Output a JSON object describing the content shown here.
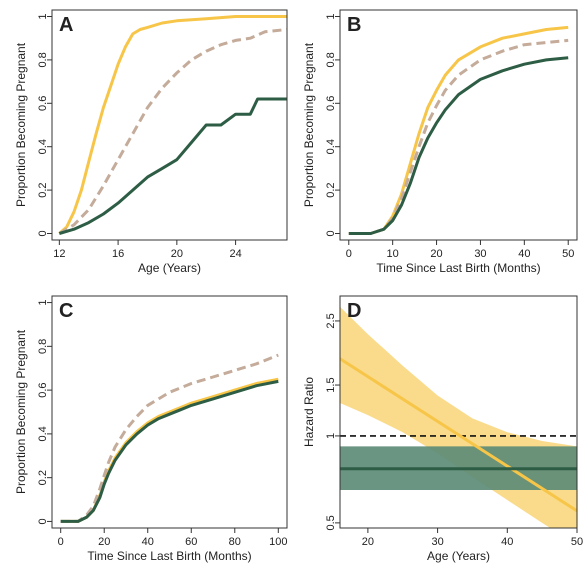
{
  "colors": {
    "yellow": "#f7c548",
    "tan": "#c4ab9a",
    "green": "#2e5d45",
    "band_yellow": "#f8d77e",
    "band_green": "#5a8a76",
    "frame": "#333333"
  },
  "chart_data": [
    {
      "panel": "A",
      "type": "line",
      "xlabel": "Age (Years)",
      "ylabel": "Proportion Becoming Pregnant",
      "xlim": [
        11.5,
        27.5
      ],
      "ylim": [
        -0.03,
        1.03
      ],
      "xticks": [
        12,
        16,
        20,
        24
      ],
      "yticks": [
        0.0,
        0.2,
        0.4,
        0.6,
        0.8,
        1.0
      ],
      "series": [
        {
          "color": "yellow",
          "dash": false,
          "x": [
            12,
            12.5,
            13,
            13.5,
            14,
            14.5,
            15,
            15.5,
            16,
            16.5,
            17,
            17.5,
            18,
            19,
            20,
            22,
            24,
            27.5
          ],
          "y": [
            0.0,
            0.03,
            0.1,
            0.2,
            0.33,
            0.46,
            0.58,
            0.68,
            0.78,
            0.86,
            0.92,
            0.94,
            0.95,
            0.97,
            0.98,
            0.99,
            1.0,
            1.0
          ]
        },
        {
          "color": "tan",
          "dash": true,
          "x": [
            12,
            13,
            14,
            15,
            16,
            17,
            18,
            19,
            20,
            21,
            22,
            23,
            24,
            25,
            26,
            27.5
          ],
          "y": [
            0.0,
            0.04,
            0.11,
            0.22,
            0.34,
            0.46,
            0.58,
            0.67,
            0.74,
            0.8,
            0.84,
            0.87,
            0.89,
            0.9,
            0.93,
            0.94
          ]
        },
        {
          "color": "green",
          "dash": false,
          "x": [
            12,
            13,
            14,
            15,
            16,
            17,
            18,
            19,
            20,
            21,
            22,
            23,
            24,
            25,
            25.5,
            27.5
          ],
          "y": [
            0.0,
            0.02,
            0.05,
            0.09,
            0.14,
            0.2,
            0.26,
            0.3,
            0.34,
            0.42,
            0.5,
            0.5,
            0.55,
            0.55,
            0.62,
            0.62
          ]
        }
      ]
    },
    {
      "panel": "B",
      "type": "line",
      "xlabel": "Time Since Last Birth (Months)",
      "ylabel": "Proportion Becoming Pregnant",
      "xlim": [
        -2,
        52
      ],
      "ylim": [
        -0.03,
        1.03
      ],
      "xticks": [
        0,
        10,
        20,
        30,
        40,
        50
      ],
      "yticks": [
        0.0,
        0.2,
        0.4,
        0.6,
        0.8,
        1.0
      ],
      "series": [
        {
          "color": "yellow",
          "dash": false,
          "x": [
            0,
            5,
            8,
            10,
            12,
            14,
            16,
            18,
            20,
            22,
            25,
            30,
            35,
            40,
            45,
            50
          ],
          "y": [
            0.0,
            0.0,
            0.02,
            0.08,
            0.18,
            0.32,
            0.46,
            0.58,
            0.66,
            0.73,
            0.8,
            0.86,
            0.9,
            0.92,
            0.94,
            0.95
          ]
        },
        {
          "color": "tan",
          "dash": true,
          "x": [
            0,
            5,
            8,
            10,
            12,
            14,
            16,
            18,
            20,
            22,
            25,
            30,
            35,
            40,
            45,
            50
          ],
          "y": [
            0.0,
            0.0,
            0.02,
            0.07,
            0.16,
            0.28,
            0.4,
            0.51,
            0.59,
            0.66,
            0.73,
            0.8,
            0.84,
            0.87,
            0.88,
            0.89
          ]
        },
        {
          "color": "green",
          "dash": false,
          "x": [
            0,
            5,
            8,
            10,
            12,
            14,
            16,
            18,
            20,
            22,
            25,
            30,
            35,
            40,
            45,
            50
          ],
          "y": [
            0.0,
            0.0,
            0.02,
            0.06,
            0.13,
            0.23,
            0.35,
            0.44,
            0.51,
            0.57,
            0.64,
            0.71,
            0.75,
            0.78,
            0.8,
            0.81
          ]
        }
      ]
    },
    {
      "panel": "C",
      "type": "line",
      "xlabel": "Time Since Last Birth (Months)",
      "ylabel": "Proportion Becoming Pregnant",
      "xlim": [
        -4,
        104
      ],
      "ylim": [
        -0.03,
        1.03
      ],
      "xticks": [
        0,
        20,
        40,
        60,
        80,
        100
      ],
      "yticks": [
        0.0,
        0.2,
        0.4,
        0.6,
        0.8,
        1.0
      ],
      "series": [
        {
          "color": "yellow",
          "dash": false,
          "x": [
            0,
            8,
            12,
            15,
            18,
            20,
            22,
            25,
            30,
            35,
            40,
            45,
            50,
            55,
            60,
            70,
            80,
            90,
            100
          ],
          "y": [
            0.0,
            0.0,
            0.02,
            0.05,
            0.12,
            0.18,
            0.23,
            0.29,
            0.36,
            0.41,
            0.45,
            0.48,
            0.5,
            0.52,
            0.54,
            0.57,
            0.6,
            0.63,
            0.65
          ]
        },
        {
          "color": "tan",
          "dash": true,
          "x": [
            0,
            8,
            12,
            15,
            18,
            20,
            22,
            25,
            30,
            35,
            40,
            45,
            50,
            55,
            60,
            70,
            80,
            90,
            100
          ],
          "y": [
            0.0,
            0.0,
            0.03,
            0.07,
            0.15,
            0.21,
            0.27,
            0.34,
            0.42,
            0.48,
            0.53,
            0.56,
            0.59,
            0.61,
            0.63,
            0.66,
            0.69,
            0.72,
            0.76
          ]
        },
        {
          "color": "green",
          "dash": false,
          "x": [
            0,
            8,
            12,
            15,
            18,
            20,
            22,
            25,
            30,
            35,
            40,
            45,
            50,
            55,
            60,
            70,
            80,
            90,
            100
          ],
          "y": [
            0.0,
            0.0,
            0.02,
            0.05,
            0.11,
            0.17,
            0.22,
            0.28,
            0.35,
            0.4,
            0.44,
            0.47,
            0.49,
            0.51,
            0.53,
            0.56,
            0.59,
            0.62,
            0.64
          ]
        }
      ]
    },
    {
      "panel": "D",
      "type": "line",
      "log_y": true,
      "xlabel": "Age (Years)",
      "ylabel": "Hazard Ratio",
      "xlim": [
        16,
        50
      ],
      "ylim": [
        0.48,
        3.05
      ],
      "xticks": [
        20,
        30,
        40,
        50
      ],
      "yticks": [
        0.5,
        1.0,
        1.5,
        2.5
      ],
      "reference_line": {
        "y": 1.0,
        "dash": true
      },
      "bands": [
        {
          "color": "band_yellow",
          "x": [
            16,
            20,
            25,
            30,
            35,
            40,
            45,
            50
          ],
          "lower": [
            1.3,
            1.18,
            1.03,
            0.87,
            0.72,
            0.6,
            0.5,
            0.42
          ],
          "upper": [
            2.8,
            2.25,
            1.75,
            1.38,
            1.15,
            1.03,
            0.96,
            0.92
          ]
        },
        {
          "color": "band_green",
          "x": [
            16,
            50
          ],
          "lower": [
            0.65,
            0.65
          ],
          "upper": [
            0.92,
            0.92
          ]
        }
      ],
      "series": [
        {
          "color": "yellow",
          "dash": false,
          "x": [
            16,
            50
          ],
          "y": [
            1.85,
            0.55
          ]
        },
        {
          "color": "green",
          "dash": false,
          "x": [
            16,
            50
          ],
          "y": [
            0.77,
            0.77
          ]
        }
      ]
    }
  ]
}
